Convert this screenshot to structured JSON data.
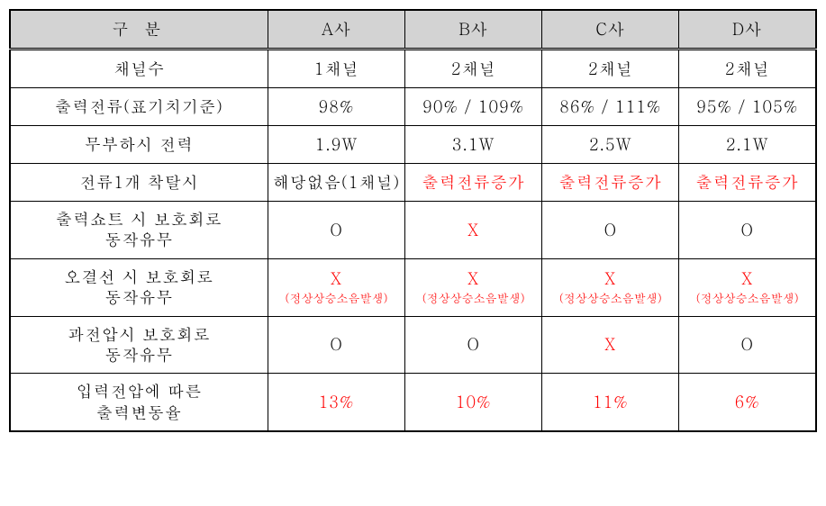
{
  "table": {
    "colors": {
      "header_bg": "#d3d3d3",
      "border": "#000000",
      "text_normal": "#000000",
      "text_red": "#ff0000",
      "background": "#ffffff"
    },
    "headers": {
      "category": "구 분",
      "col_a": "A사",
      "col_b": "B사",
      "col_c": "C사",
      "col_d": "D사"
    },
    "rows": [
      {
        "label": "채널수",
        "multiline": false,
        "cells": [
          {
            "text": "1채널",
            "red": false
          },
          {
            "text": "2채널",
            "red": false
          },
          {
            "text": "2채널",
            "red": false
          },
          {
            "text": "2채널",
            "red": false
          }
        ]
      },
      {
        "label": "출력전류(표기치기준)",
        "multiline": false,
        "cells": [
          {
            "text": "98%",
            "red": false
          },
          {
            "text": "90% / 109%",
            "red": false
          },
          {
            "text": "86% / 111%",
            "red": false
          },
          {
            "text": "95% / 105%",
            "red": false
          }
        ]
      },
      {
        "label": "무부하시 전력",
        "multiline": false,
        "cells": [
          {
            "text": "1.9W",
            "red": false
          },
          {
            "text": "3.1W",
            "red": false
          },
          {
            "text": "2.5W",
            "red": false
          },
          {
            "text": "2.1W",
            "red": false
          }
        ]
      },
      {
        "label": "전류1개 착탈시",
        "multiline": false,
        "cells": [
          {
            "text": "해당없음(1채널)",
            "red": false
          },
          {
            "text": "출력전류증가",
            "red": true
          },
          {
            "text": "출력전류증가",
            "red": true
          },
          {
            "text": "출력전류증가",
            "red": true
          }
        ]
      },
      {
        "label": "출력쇼트 시 보호회로",
        "label2": "동작유무",
        "multiline": true,
        "cells": [
          {
            "text": "O",
            "red": false
          },
          {
            "text": "X",
            "red": true
          },
          {
            "text": "O",
            "red": false
          },
          {
            "text": "O",
            "red": false
          }
        ]
      },
      {
        "label": "오결선 시 보호회로",
        "label2": "동작유무",
        "multiline": true,
        "cells": [
          {
            "text": "X",
            "sub": "(정상상승소음발생)",
            "red": true
          },
          {
            "text": "X",
            "sub": "(정상상승소음발생)",
            "red": true
          },
          {
            "text": "X",
            "sub": "(정상상승소음발생)",
            "red": true
          },
          {
            "text": "X",
            "sub": "(정상상승소음발생)",
            "red": true
          }
        ]
      },
      {
        "label": "과전압시 보호회로",
        "label2": "동작유무",
        "multiline": true,
        "cells": [
          {
            "text": "O",
            "red": false
          },
          {
            "text": "O",
            "red": false
          },
          {
            "text": "X",
            "red": true
          },
          {
            "text": "O",
            "red": false
          }
        ]
      },
      {
        "label": "입력전압에 따른",
        "label2": "출력변동율",
        "multiline": true,
        "cells": [
          {
            "text": "13%",
            "red": true
          },
          {
            "text": "10%",
            "red": true
          },
          {
            "text": "11%",
            "red": true
          },
          {
            "text": "6%",
            "red": true
          }
        ]
      }
    ]
  }
}
